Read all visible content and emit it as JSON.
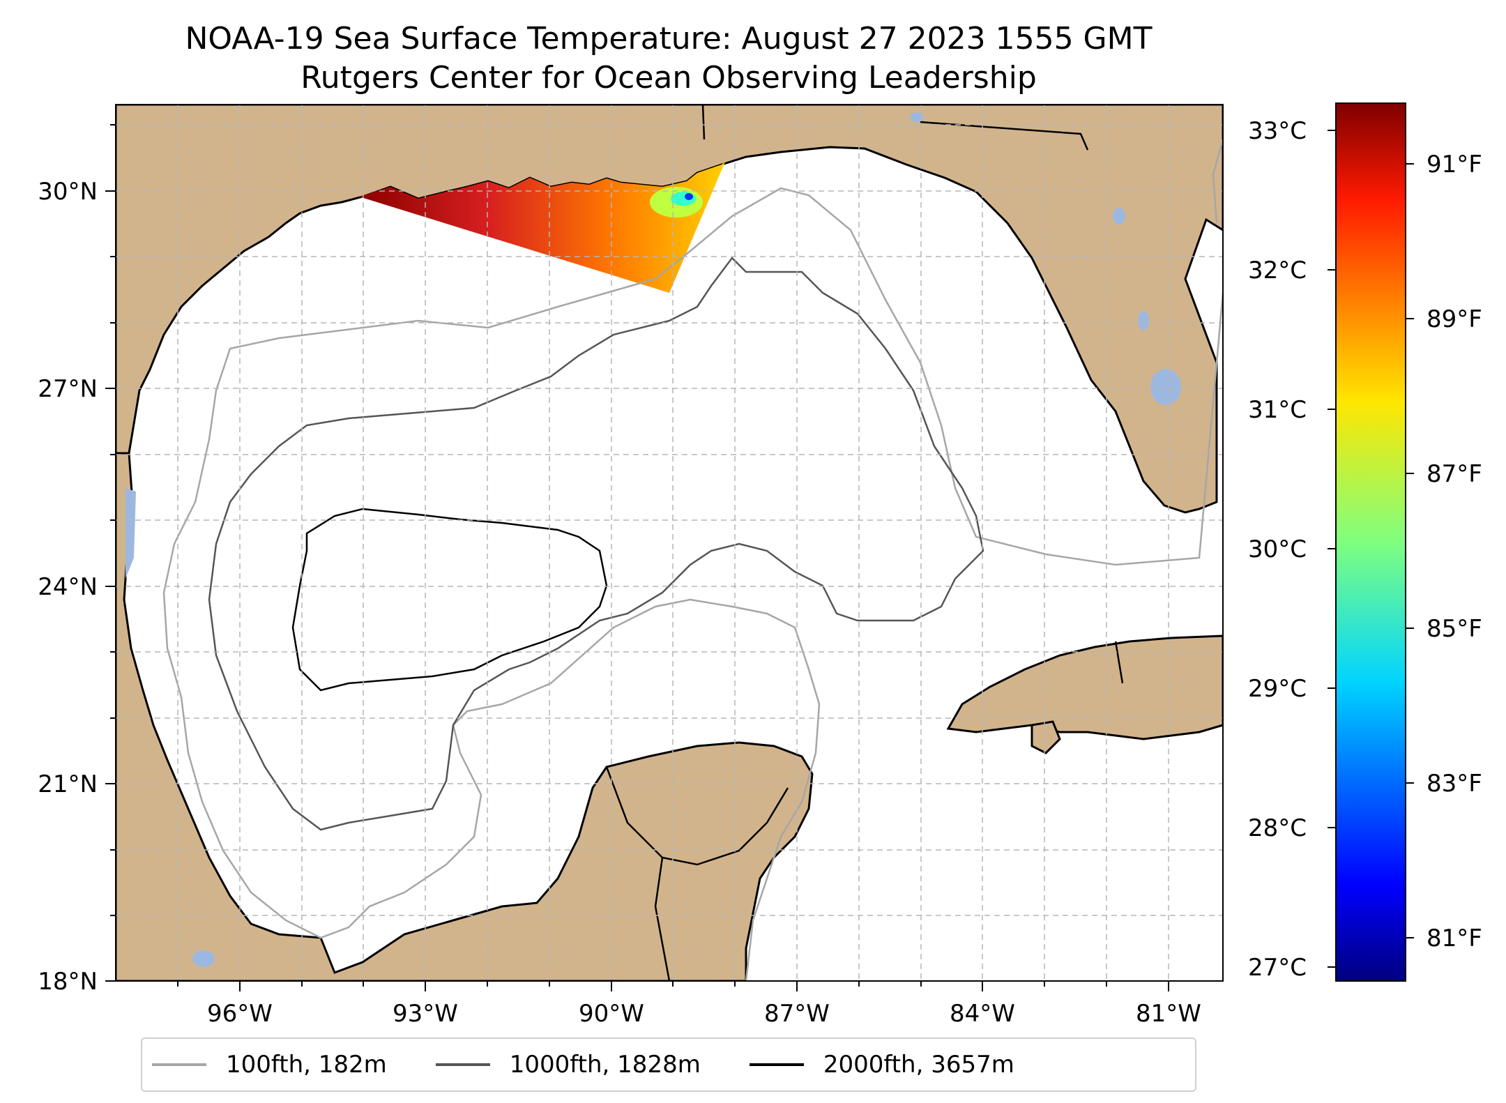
{
  "title": {
    "line1": "NOAA-19 Sea Surface Temperature: August 27 2023 1555 GMT",
    "line2": "Rutgers Center for Ocean Observing Leadership"
  },
  "map": {
    "extent": {
      "lon_min": -98.0,
      "lon_max": -80.3,
      "lat_min": 18.0,
      "lat_max": 31.3
    },
    "gridlines": "dashed",
    "land_color": "#d2b48c",
    "water_body_color": "#9db8e0",
    "x_ticks": [
      "96°W",
      "93°W",
      "90°W",
      "87°W",
      "84°W",
      "81°W"
    ],
    "y_ticks": [
      "18°N",
      "21°N",
      "24°N",
      "27°N",
      "30°N"
    ]
  },
  "colorbar": {
    "colormap": "jet",
    "celsius_ticks": [
      "27°C",
      "28°C",
      "29°C",
      "30°C",
      "31°C",
      "32°C",
      "33°C"
    ],
    "fahrenheit_ticks": [
      "81°F",
      "83°F",
      "85°F",
      "87°F",
      "89°F",
      "91°F"
    ]
  },
  "legend": [
    {
      "label": "100fth, 182m",
      "color": "#a6a6a6"
    },
    {
      "label": "1000fth, 1828m",
      "color": "#555555"
    },
    {
      "label": "2000fth, 3657m",
      "color": "#000000"
    }
  ]
}
